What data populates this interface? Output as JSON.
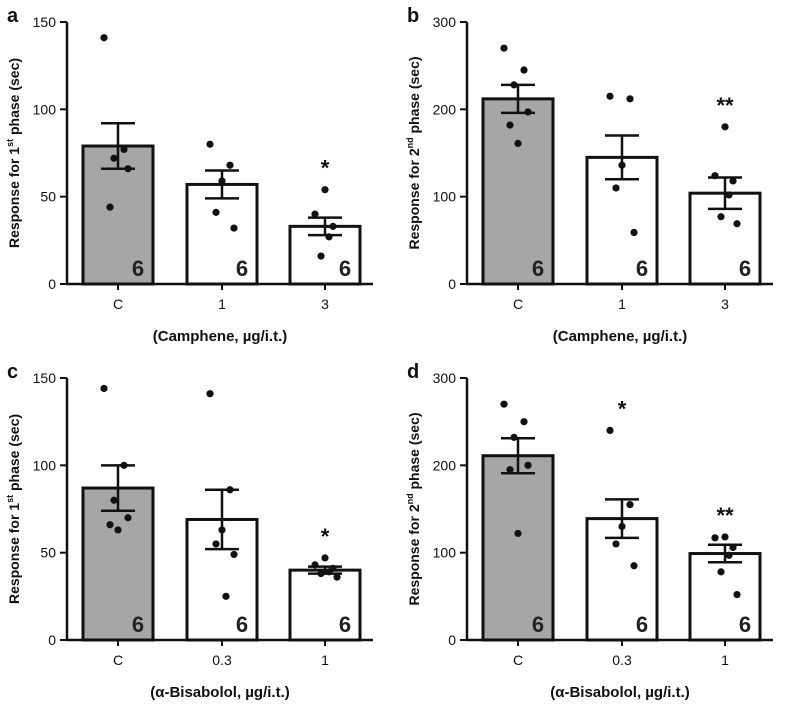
{
  "chart_data": [
    {
      "type": "bar",
      "panel": "a",
      "categories": [
        "C",
        "1",
        "3"
      ],
      "values": [
        79,
        57,
        33
      ],
      "errors": [
        13,
        8,
        5
      ],
      "points": [
        [
          141,
          77,
          72,
          66,
          44
        ],
        [
          80,
          68,
          59,
          41,
          32
        ],
        [
          54,
          40,
          33,
          27,
          16
        ]
      ],
      "n": [
        "6",
        "6",
        "6"
      ],
      "significance": [
        "",
        "",
        "*"
      ],
      "fills": [
        "#a6a6a6",
        "#ffffff",
        "#ffffff"
      ],
      "ylabel": {
        "pre": "Response for 1",
        "sup": "st",
        "post": " phase (sec)"
      },
      "xlabel": "(Camphene, µg/i.t.)",
      "ylim": [
        0,
        150
      ],
      "yticks": [
        0,
        50,
        100,
        150
      ]
    },
    {
      "type": "bar",
      "panel": "b",
      "categories": [
        "C",
        "1",
        "3"
      ],
      "values": [
        212,
        145,
        104
      ],
      "errors": [
        16,
        25,
        18
      ],
      "points": [
        [
          270,
          245,
          228,
          197,
          182,
          161
        ],
        [
          215,
          212,
          136,
          110,
          59
        ],
        [
          180,
          124,
          118,
          102,
          77,
          69
        ]
      ],
      "n": [
        "6",
        "6",
        "6"
      ],
      "significance": [
        "",
        "",
        "**"
      ],
      "fills": [
        "#a6a6a6",
        "#ffffff",
        "#ffffff"
      ],
      "ylabel": {
        "pre": "Response for 2",
        "sup": "nd",
        "post": " phase (sec)"
      },
      "xlabel": "(Camphene, µg/i.t.)",
      "ylim": [
        0,
        300
      ],
      "yticks": [
        0,
        100,
        200,
        300
      ]
    },
    {
      "type": "bar",
      "panel": "c",
      "categories": [
        "C",
        "0.3",
        "1"
      ],
      "values": [
        87,
        69,
        40
      ],
      "errors": [
        13,
        17,
        2
      ],
      "points": [
        [
          144,
          100,
          80,
          70,
          66,
          63
        ],
        [
          141,
          86,
          63,
          55,
          49,
          25
        ],
        [
          47,
          43,
          41,
          39,
          38,
          36
        ]
      ],
      "n": [
        "6",
        "6",
        "6"
      ],
      "significance": [
        "",
        "",
        "*"
      ],
      "fills": [
        "#a6a6a6",
        "#ffffff",
        "#ffffff"
      ],
      "ylabel": {
        "pre": "Response for 1",
        "sup": "st",
        "post": " phase (sec)"
      },
      "xlabel": "(α-Bisabolol, µg/i.t.)",
      "ylim": [
        0,
        150
      ],
      "yticks": [
        0,
        50,
        100,
        150
      ]
    },
    {
      "type": "bar",
      "panel": "d",
      "categories": [
        "C",
        "0.3",
        "1"
      ],
      "values": [
        211,
        139,
        99
      ],
      "errors": [
        20,
        22,
        10
      ],
      "points": [
        [
          270,
          250,
          232,
          200,
          195,
          122
        ],
        [
          240,
          155,
          130,
          110,
          85
        ],
        [
          118,
          117,
          106,
          97,
          78,
          52
        ]
      ],
      "n": [
        "6",
        "6",
        "6"
      ],
      "significance": [
        "",
        "*",
        "**"
      ],
      "fills": [
        "#a6a6a6",
        "#ffffff",
        "#ffffff"
      ],
      "ylabel": {
        "pre": "Response for 2",
        "sup": "nd",
        "post": " phase (sec)"
      },
      "xlabel": "(α-Bisabolol, µg/i.t.)",
      "ylim": [
        0,
        300
      ],
      "yticks": [
        0,
        100,
        200,
        300
      ]
    }
  ]
}
